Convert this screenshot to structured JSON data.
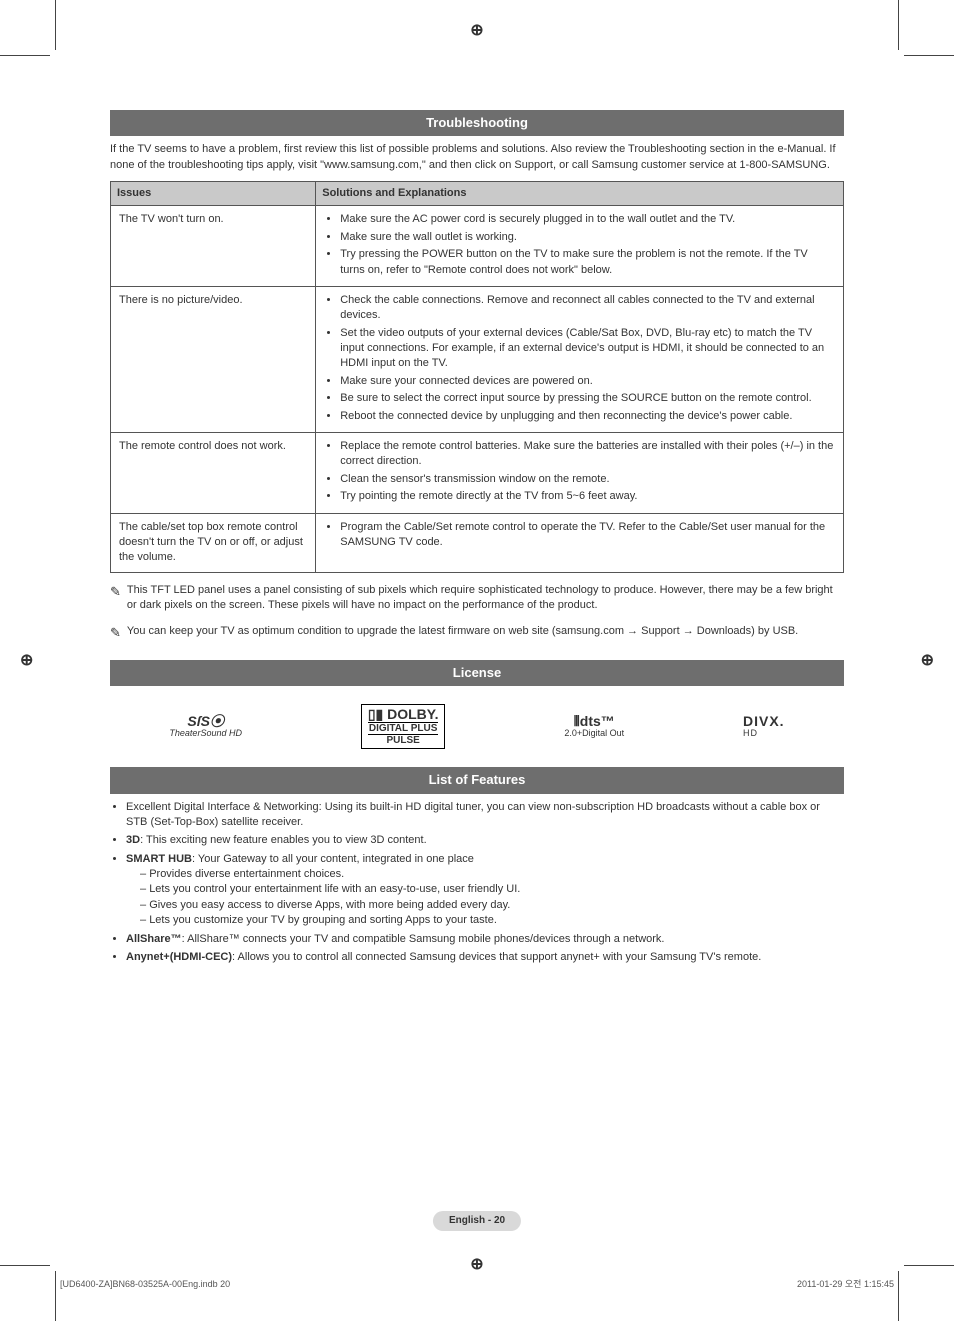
{
  "sections": {
    "troubleshooting": {
      "title": "Troubleshooting",
      "intro": "If the TV seems to have a problem, first review this list of possible problems and solutions. Also review the Troubleshooting section in the e-Manual. If none of the troubleshooting tips apply, visit \"www.samsung.com,\" and then click on Support, or call Samsung customer service at 1-800-SAMSUNG.",
      "table": {
        "header_issues": "Issues",
        "header_solutions": "Solutions and Explanations",
        "rows": [
          {
            "issue": "The TV won't turn on.",
            "solutions": [
              "Make sure the AC power cord is securely plugged in to the wall outlet and the TV.",
              "Make sure the wall outlet is working.",
              "Try pressing the POWER button on the TV to make sure the problem is not the remote. If the TV turns on, refer to \"Remote control does not work\" below."
            ]
          },
          {
            "issue": "There is no picture/video.",
            "solutions": [
              "Check the cable connections. Remove and reconnect all cables connected to the TV and external devices.",
              "Set the video outputs of your external devices (Cable/Sat Box, DVD, Blu-ray etc) to match the TV input connections. For example, if an external device's output is HDMI, it should be connected to an HDMI input on the TV.",
              "Make sure your connected devices are powered on.",
              "Be sure to select the correct input source by pressing the SOURCE button on the remote control.",
              "Reboot the connected device by unplugging and then reconnecting the device's power cable."
            ]
          },
          {
            "issue": "The remote control does not work.",
            "solutions": [
              "Replace the remote control batteries. Make sure the batteries are installed with their poles (+/–) in the correct direction.",
              "Clean the sensor's transmission window on the remote.",
              "Try pointing the remote directly at the TV from 5~6 feet away."
            ]
          },
          {
            "issue": "The cable/set top box remote control doesn't turn the TV on or off, or adjust the volume.",
            "solutions": [
              "Program the Cable/Set remote control to operate the TV. Refer to the Cable/Set user manual for the SAMSUNG TV code."
            ]
          }
        ]
      },
      "notes": [
        "This TFT LED panel uses a panel consisting of sub pixels which require sophisticated technology to produce. However, there may be a few bright or dark pixels on the screen. These pixels will have no impact on the performance of the product.",
        "You can keep your TV as optimum condition to upgrade the latest firmware on web site (samsung.com → Support → Downloads) by USB."
      ]
    },
    "license": {
      "title": "License",
      "logos": {
        "srs": {
          "main": "SſS⦿",
          "sub": "TheaterSound HD"
        },
        "dolby": {
          "l1": "▯▮ DOLBY.",
          "l2": "DIGITAL PLUS",
          "l3": "PULSE"
        },
        "dts": {
          "main": "⦀dts™",
          "sub": "2.0+Digital Out"
        },
        "divx": {
          "main": "DIVX.",
          "sub": "HD"
        }
      }
    },
    "features": {
      "title": "List of Features",
      "items": [
        {
          "text": "Excellent Digital Interface & Networking: Using its built-in HD digital tuner, you can view non-subscription HD broadcasts without a cable box or STB (Set-Top-Box) satellite receiver."
        },
        {
          "lead": "3D",
          "text": ": This exciting new feature enables you to view 3D content."
        },
        {
          "lead": "SMART HUB",
          "text": ": Your Gateway to all your content, integrated in one place",
          "sub": [
            "Provides diverse entertainment choices.",
            "Lets you control your entertainment life with an easy-to-use, user friendly UI.",
            "Gives you easy access to diverse Apps, with more being added every day.",
            "Lets you customize your TV by grouping and sorting Apps to your taste."
          ]
        },
        {
          "lead": "AllShare™",
          "text": ": AllShare™ connects your TV and compatible Samsung mobile phones/devices through a network."
        },
        {
          "lead": "Anynet+(HDMI-CEC)",
          "text": ": Allows you to control all connected Samsung devices that support anynet+ with your Samsung TV's remote."
        }
      ]
    }
  },
  "footer": {
    "page": "English - 20",
    "left": "[UD6400-ZA]BN68-03525A-00Eng.indb   20",
    "right": "2011-01-29   오전 1:15:45"
  },
  "reg_glyph": "⊕"
}
